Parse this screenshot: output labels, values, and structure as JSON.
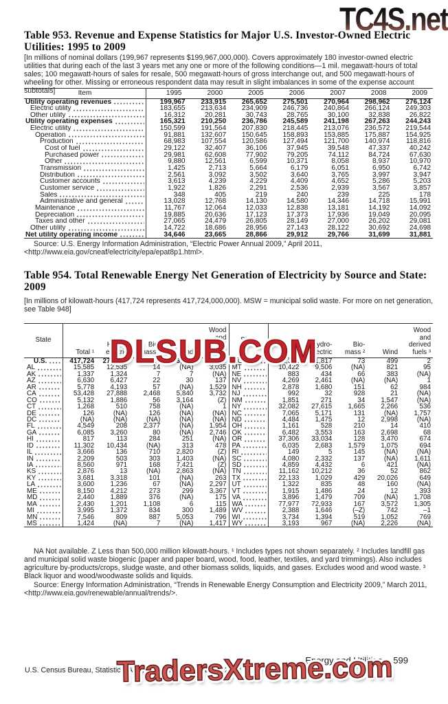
{
  "watermarks": {
    "top": "TC4S.net",
    "middle": "DLSUB.COM",
    "bottom": "TradersXtreme.com"
  },
  "footer": {
    "section": "Energy and Utilities",
    "page": "599",
    "imprint": "U.S. Census Bureau, Statistical Abstract of the United States: 2012"
  },
  "table953": {
    "title": "Table 953. Revenue and Expense Statistics for Major U.S. Investor-Owned Electric Utilities: 1995 to 2009",
    "note": "[In millions of nominal dollars (199,967 represents $199,967,000,000). Covers approximately 180 investor-owned electric utilities that during each of the last 3 years met any one or more of the following conditions—1 mil. megawatt-hours of total sales; 100 megawatt-hours of sales for resale, 500 megawatt-hours of gross interchange out, and 500 megawatt-hours of wheeling for other. Missing or erroneous respondent data may result in slight imbalances in some of the expense account subtotals]",
    "columns": [
      "Item",
      "1995",
      "2000",
      "2005",
      "2006",
      "2007",
      "2008",
      "2009"
    ],
    "rows": [
      {
        "label": "Utility operating revenues",
        "indent": 0,
        "bold": true,
        "values": [
          "199,967",
          "233,915",
          "265,652",
          "275,501",
          "270,964",
          "298,962",
          "276,124"
        ]
      },
      {
        "label": "Electric utility",
        "indent": 1,
        "bold": false,
        "values": [
          "183,655",
          "213,634",
          "234,909",
          "246,736",
          "240,864",
          "266,124",
          "249,303"
        ]
      },
      {
        "label": "Other utility",
        "indent": 1,
        "bold": false,
        "values": [
          "16,312",
          "20,281",
          "30,743",
          "28,765",
          "30,100",
          "32,838",
          "26,822"
        ]
      },
      {
        "label": "Utility operating expenses",
        "indent": 0,
        "bold": true,
        "values": [
          "165,321",
          "210,250",
          "236,786",
          "245,589",
          "241,198",
          "267,263",
          "244,243"
        ]
      },
      {
        "label": "Electric utility",
        "indent": 1,
        "bold": false,
        "values": [
          "150,599",
          "191,564",
          "207,830",
          "218,445",
          "213,076",
          "236,572",
          "219,544"
        ]
      },
      {
        "label": "Operation",
        "indent": 2,
        "bold": false,
        "values": [
          "91,881",
          "132,607",
          "150,645",
          "158,893",
          "153,885",
          "175,887",
          "154,925"
        ]
      },
      {
        "label": "Production",
        "indent": 3,
        "bold": false,
        "values": [
          "68,983",
          "107,554",
          "120,586",
          "127,494",
          "121,700",
          "140,974",
          "118,816"
        ]
      },
      {
        "label": "Cost of fuel",
        "indent": 4,
        "bold": false,
        "values": [
          "29,122",
          "32,407",
          "36,106",
          "37,945",
          "39,548",
          "47,337",
          "40,242"
        ]
      },
      {
        "label": "Purchased power",
        "indent": 4,
        "bold": false,
        "values": [
          "29,981",
          "62,608",
          "77,902",
          "79,205",
          "74,112",
          "84,724",
          "67,630"
        ]
      },
      {
        "label": "Other",
        "indent": 4,
        "bold": false,
        "values": [
          "9,880",
          "12,561",
          "6,599",
          "10,371",
          "8,058",
          "8,937",
          "10,970"
        ]
      },
      {
        "label": "Transmission",
        "indent": 3,
        "bold": false,
        "values": [
          "1,425",
          "2,713",
          "5,664",
          "6,179",
          "6,051",
          "6,950",
          "6,742"
        ]
      },
      {
        "label": "Distribution",
        "indent": 3,
        "bold": false,
        "values": [
          "2,561",
          "3,092",
          "3,502",
          "3,640",
          "3,765",
          "3,997",
          "3,947"
        ]
      },
      {
        "label": "Customer accounts",
        "indent": 3,
        "bold": false,
        "values": [
          "3,613",
          "4,239",
          "4,229",
          "4,409",
          "4,652",
          "5,286",
          "5,203"
        ]
      },
      {
        "label": "Customer service",
        "indent": 3,
        "bold": false,
        "values": [
          "1,922",
          "1,826",
          "2,291",
          "2,536",
          "2,939",
          "3,567",
          "3,857"
        ]
      },
      {
        "label": "Sales",
        "indent": 3,
        "bold": false,
        "values": [
          "348",
          "405",
          "219",
          "240",
          "239",
          "225",
          "178"
        ]
      },
      {
        "label": "Administrative and general",
        "indent": 3,
        "bold": false,
        "values": [
          "13,028",
          "12,768",
          "14,130",
          "14,580",
          "14,346",
          "14,718",
          "15,991"
        ]
      },
      {
        "label": "Maintenance",
        "indent": 2,
        "bold": false,
        "values": [
          "11,767",
          "12,064",
          "12,033",
          "12,838",
          "13,181",
          "14,192",
          "14,092"
        ]
      },
      {
        "label": "Depreciation",
        "indent": 2,
        "bold": false,
        "values": [
          "19,885",
          "20,636",
          "17,123",
          "17,373",
          "17,936",
          "19,049",
          "20,095"
        ]
      },
      {
        "label": "Taxes and other",
        "indent": 2,
        "bold": false,
        "values": [
          "27,065",
          "24,479",
          "26,805",
          "28,149",
          "27,000",
          "26,202",
          "29,081"
        ]
      },
      {
        "label": "Other utility",
        "indent": 1,
        "bold": false,
        "values": [
          "14,722",
          "18,686",
          "28,956",
          "27,143",
          "28,122",
          "30,692",
          "24,698"
        ]
      },
      {
        "label": "Net utility operating income",
        "indent": 0,
        "bold": true,
        "values": [
          "34,646",
          "23,665",
          "28,866",
          "29,912",
          "29,766",
          "31,699",
          "31,881"
        ]
      }
    ],
    "source": "Source: U.S. Energy Information Administration, “Electric Power Annual 2009,” April 2011, <http://www.eia.gov/cneaf/electricity/epa/epat8p1.html>."
  },
  "table954": {
    "title": "Table 954. Total Renewable Energy Net Generation of Electricity by Source and State: 2009",
    "note": "[In millions of kilowatt-hours (417,724 represents 417,724,000,000). MSW = municipal solid waste. For more on net generation, see Table 948]",
    "col_headers": {
      "state": "State",
      "total": "Total ¹",
      "hydro": "Hydro-\nelectric",
      "biomass": "Bio-\nmass ²",
      "wind": "Wind",
      "wood": "Wood\nand\nderived\nfuels ³"
    },
    "left_rows": [
      {
        "label": "U.S.",
        "bold": true,
        "us": true,
        "values": [
          "417,724",
          "273,445",
          "18,443",
          "73,886",
          "36,050"
        ]
      },
      {
        "label": "AL",
        "values": [
          "15,585",
          "12,535",
          "14",
          "(NA)",
          "3,035"
        ]
      },
      {
        "label": "AK",
        "values": [
          "1,337",
          "1,324",
          "7",
          "7",
          "(NA)"
        ]
      },
      {
        "label": "AZ",
        "values": [
          "6,630",
          "6,427",
          "22",
          "30",
          "137"
        ]
      },
      {
        "label": "AR",
        "values": [
          "5,778",
          "4,193",
          "57",
          "(NA)",
          "1,529"
        ]
      },
      {
        "label": "CA",
        "values": [
          "53,428",
          "27,888",
          "2,468",
          "5,840",
          "3,732"
        ]
      },
      {
        "label": "CO",
        "values": [
          "5,132",
          "1,886",
          "56",
          "3,164",
          "(Z)"
        ]
      },
      {
        "label": "CT",
        "values": [
          "1,268",
          "510",
          "758",
          "(NA)",
          "1"
        ]
      },
      {
        "label": "DE",
        "values": [
          "126",
          "(NA)",
          "126",
          "(NA)",
          "(NA)"
        ]
      },
      {
        "label": "DC",
        "values": [
          "(NA)",
          "(NA)",
          "(NA)",
          "(NA)",
          "(NA)"
        ]
      },
      {
        "label": "FL",
        "values": [
          "4,549",
          "208",
          "2,377",
          "(NA)",
          "1,954"
        ]
      },
      {
        "label": "GA",
        "values": [
          "6,085",
          "3,260",
          "80",
          "(NA)",
          "2,746"
        ]
      },
      {
        "label": "HI",
        "values": [
          "817",
          "113",
          "284",
          "251",
          "(NA)"
        ]
      },
      {
        "label": "ID",
        "values": [
          "11,302",
          "10,434",
          "(NA)",
          "313",
          "478"
        ]
      },
      {
        "label": "IL",
        "values": [
          "3,666",
          "136",
          "710",
          "2,820",
          "(Z)"
        ]
      },
      {
        "label": "IN",
        "values": [
          "2,209",
          "503",
          "303",
          "1,403",
          "(NA)"
        ]
      },
      {
        "label": "IA",
        "values": [
          "8,560",
          "971",
          "168",
          "7,421",
          "(Z)"
        ]
      },
      {
        "label": "KS",
        "values": [
          "2,876",
          "13",
          "(NA)",
          "2,863",
          "(NA)"
        ]
      },
      {
        "label": "KY",
        "values": [
          "3,681",
          "3,318",
          "101",
          "(NA)",
          "263"
        ]
      },
      {
        "label": "LA",
        "values": [
          "3,600",
          "1,236",
          "67",
          "(NA)",
          "2,297"
        ]
      },
      {
        "label": "ME",
        "values": [
          "8,150",
          "4,212",
          "273",
          "299",
          "3,367"
        ]
      },
      {
        "label": "MD",
        "values": [
          "2,440",
          "1,889",
          "376",
          "(NA)",
          "175"
        ]
      },
      {
        "label": "MA",
        "values": [
          "2,430",
          "1,201",
          "1,108",
          "6",
          "115"
        ]
      },
      {
        "label": "MI",
        "values": [
          "3,995",
          "1,372",
          "834",
          "300",
          "1,489"
        ]
      },
      {
        "label": "MN",
        "values": [
          "7,546",
          "809",
          "887",
          "5,053",
          "796"
        ]
      },
      {
        "label": "MS",
        "values": [
          "1,424",
          "(NA)",
          "7",
          "(NA)",
          "1,417"
        ]
      }
    ],
    "right_rows": [
      {
        "label": "MO",
        "values": [
          "2,391",
          "1,817",
          "73",
          "499",
          "2"
        ]
      },
      {
        "label": "MT",
        "values": [
          "10,422",
          "9,506",
          "(NA)",
          "821",
          "95"
        ]
      },
      {
        "label": "NE",
        "values": [
          "883",
          "434",
          "66",
          "383",
          "(NA)"
        ]
      },
      {
        "label": "NV",
        "values": [
          "4,269",
          "2,461",
          "(NA)",
          "(NA)",
          "1"
        ]
      },
      {
        "label": "NH",
        "values": [
          "2,878",
          "1,680",
          "151",
          "62",
          "984"
        ]
      },
      {
        "label": "NJ",
        "values": [
          "992",
          "32",
          "928",
          "21",
          "(NA)"
        ]
      },
      {
        "label": "NM",
        "values": [
          "1,851",
          "271",
          "34",
          "1,547",
          "(NA)"
        ]
      },
      {
        "label": "NY",
        "values": [
          "32,082",
          "27,615",
          "1,665",
          "2,266",
          "536"
        ]
      },
      {
        "label": "NC",
        "values": [
          "7,065",
          "5,171",
          "131",
          "(NA)",
          "1,757"
        ]
      },
      {
        "label": "ND",
        "values": [
          "4,484",
          "1,475",
          "12",
          "2,998",
          "(NA)"
        ]
      },
      {
        "label": "OH",
        "values": [
          "1,161",
          "528",
          "210",
          "14",
          "410"
        ]
      },
      {
        "label": "OK",
        "values": [
          "6,482",
          "3,553",
          "163",
          "2,698",
          "68"
        ]
      },
      {
        "label": "OR",
        "values": [
          "37,306",
          "33,034",
          "128",
          "3,470",
          "674"
        ]
      },
      {
        "label": "PA",
        "values": [
          "6,035",
          "2,683",
          "1,579",
          "1,075",
          "694"
        ]
      },
      {
        "label": "RI",
        "values": [
          "149",
          "5",
          "145",
          "(NA)",
          "(NA)"
        ]
      },
      {
        "label": "SC",
        "values": [
          "4,080",
          "2,332",
          "137",
          "(NA)",
          "1,611"
        ]
      },
      {
        "label": "SD",
        "values": [
          "4,859",
          "4,432",
          "6",
          "421",
          "(NA)"
        ]
      },
      {
        "label": "TN",
        "values": [
          "11,162",
          "10,212",
          "36",
          "52",
          "862"
        ]
      },
      {
        "label": "TX",
        "values": [
          "22,133",
          "1,029",
          "429",
          "20,026",
          "649"
        ]
      },
      {
        "label": "UT",
        "values": [
          "1,322",
          "835",
          "48",
          "160",
          "(NA)"
        ]
      },
      {
        "label": "VT",
        "values": [
          "1,915",
          "1,486",
          "24",
          "12",
          "393"
        ]
      },
      {
        "label": "VA",
        "values": [
          "3,896",
          "1,479",
          "709",
          "(NA)",
          "1,708"
        ]
      },
      {
        "label": "WA",
        "values": [
          "77,977",
          "72,933",
          "167",
          "3,572",
          "1,305"
        ]
      },
      {
        "label": "WV",
        "values": [
          "2,388",
          "1,646",
          "(–Z)",
          "742",
          "–1"
        ]
      },
      {
        "label": "WI",
        "values": [
          "3,734",
          "1,394",
          "519",
          "1,052",
          "769"
        ]
      },
      {
        "label": "WY",
        "values": [
          "3,193",
          "967",
          "(NA)",
          "2,226",
          "(NA)"
        ]
      }
    ],
    "footnote": "NA Not available. Z Less than 500,000 million kilowatt-hours. ¹ Includes types not shown separately. ² Includes landfill gas and municipal solid waste biogenic (paper and paper board, wood, food, leather, textiles, and yard trimmings). Also includes agriculture by-products/crops, sludge waste, and other biomass solids, liquids, and gases. Excludes wood and wood waste. ³ Black liquor and wood/woodwaste solids and liquids.",
    "source": "Source: Energy Information Administration, “Trends in Renewable Energy Consumption and Electricity 2009,” March 2011, <http://www.eia.gov/renewable/annual/trends/>."
  }
}
